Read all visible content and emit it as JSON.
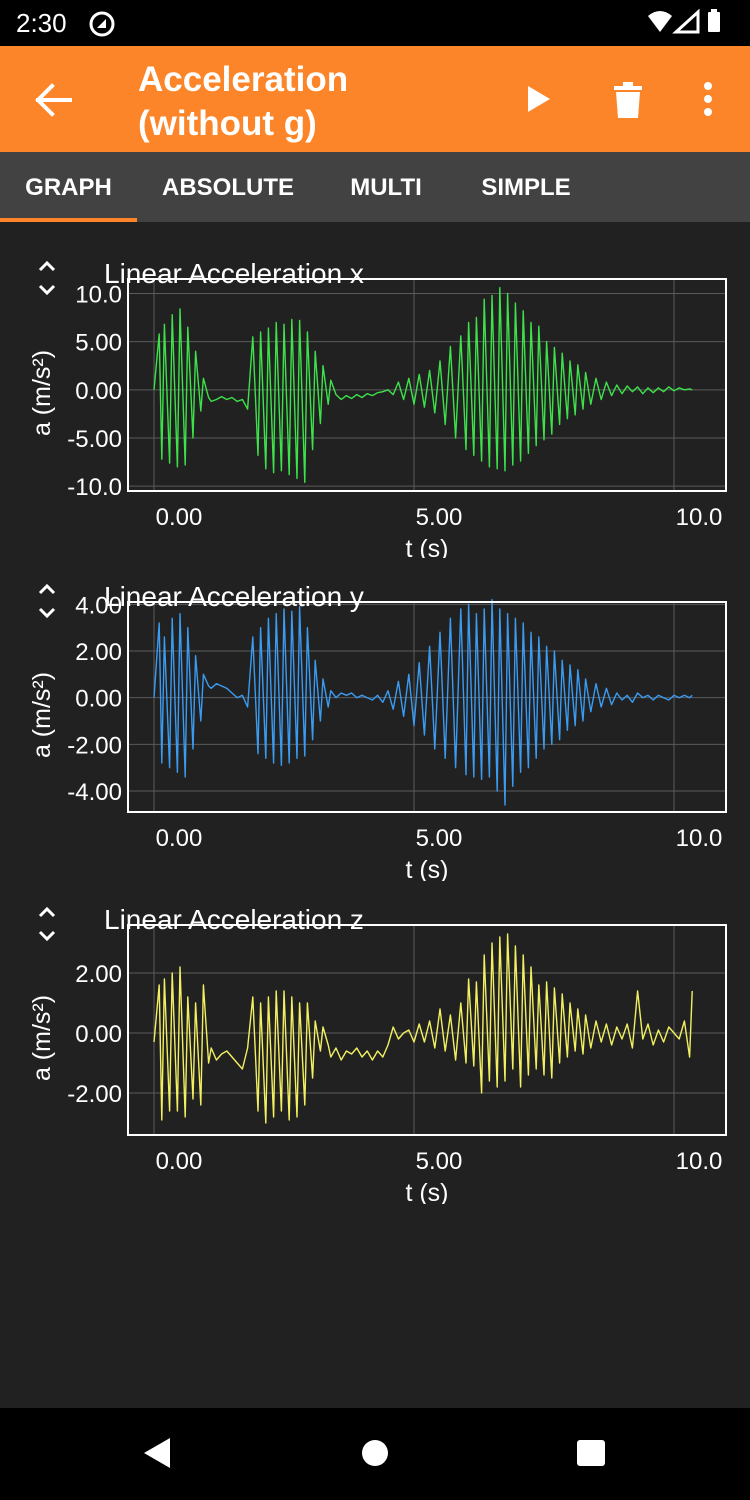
{
  "status_bar": {
    "time": "2:30"
  },
  "toolbar": {
    "title_line1": "Acceleration",
    "title_line2": "(without g)"
  },
  "tabs": [
    {
      "label": "GRAPH",
      "active": true
    },
    {
      "label": "ABSOLUTE",
      "active": false
    },
    {
      "label": "MULTI",
      "active": false
    },
    {
      "label": "SIMPLE",
      "active": false
    }
  ],
  "colors": {
    "accent": "#fb8528",
    "background": "#212121",
    "tabbar": "#424242",
    "x_series": "#3de24a",
    "y_series": "#3a9bf0",
    "z_series": "#f2f060"
  },
  "chart_data": [
    {
      "type": "line",
      "title": "Linear Acceleration x",
      "xlabel": "t (s)",
      "ylabel": "a (m/s²)",
      "xlim": [
        -0.5,
        11.0
      ],
      "ylim": [
        -10.5,
        11.5
      ],
      "x_ticks": [
        "0.00",
        "5.00",
        "10.0"
      ],
      "y_ticks": [
        "10.0",
        "5.00",
        "0.00",
        "-5.00",
        "-10.0"
      ],
      "grid": true,
      "series": [
        {
          "color": "#3de24a",
          "x": [
            0.0,
            0.1,
            0.15,
            0.2,
            0.3,
            0.35,
            0.45,
            0.5,
            0.6,
            0.65,
            0.75,
            0.8,
            0.9,
            0.95,
            1.05,
            1.1,
            1.2,
            1.3,
            1.4,
            1.5,
            1.6,
            1.7,
            1.8,
            1.9,
            2.0,
            2.05,
            2.15,
            2.2,
            2.3,
            2.35,
            2.45,
            2.5,
            2.6,
            2.65,
            2.75,
            2.8,
            2.9,
            2.95,
            3.05,
            3.1,
            3.2,
            3.25,
            3.35,
            3.4,
            3.5,
            3.6,
            3.7,
            3.8,
            3.9,
            4.0,
            4.1,
            4.2,
            4.3,
            4.4,
            4.5,
            4.6,
            4.7,
            4.8,
            4.9,
            5.0,
            5.1,
            5.2,
            5.3,
            5.4,
            5.5,
            5.6,
            5.7,
            5.8,
            5.9,
            6.0,
            6.05,
            6.15,
            6.2,
            6.3,
            6.35,
            6.45,
            6.5,
            6.6,
            6.65,
            6.75,
            6.8,
            6.9,
            6.95,
            7.05,
            7.1,
            7.2,
            7.25,
            7.35,
            7.4,
            7.5,
            7.55,
            7.65,
            7.7,
            7.8,
            7.85,
            7.95,
            8.0,
            8.1,
            8.15,
            8.25,
            8.3,
            8.4,
            8.5,
            8.6,
            8.7,
            8.8,
            8.9,
            9.0,
            9.1,
            9.2,
            9.3,
            9.4,
            9.5,
            9.6,
            9.7,
            9.8,
            9.9,
            10.0,
            10.1,
            10.2,
            10.3,
            10.35
          ],
          "y": [
            0.0,
            5.8,
            -7.2,
            6.8,
            -7.6,
            7.8,
            -8.0,
            8.4,
            -7.8,
            6.5,
            -5.0,
            4.0,
            -2.2,
            1.2,
            -0.8,
            -1.2,
            -1.0,
            -0.7,
            -1.0,
            -0.8,
            -1.2,
            -1.0,
            -2.0,
            5.5,
            -6.8,
            6.0,
            -8.2,
            6.4,
            -8.6,
            7.0,
            -8.4,
            6.8,
            -8.8,
            7.3,
            -9.2,
            7.2,
            -9.6,
            6.0,
            -6.2,
            4.0,
            -3.5,
            2.5,
            -1.5,
            1.0,
            -0.5,
            -1.0,
            -0.6,
            -0.9,
            -0.5,
            -0.8,
            -0.4,
            -0.6,
            -0.3,
            -0.2,
            0.0,
            -0.5,
            0.8,
            -1.0,
            1.2,
            -1.5,
            1.6,
            -1.8,
            2.0,
            -2.4,
            3.0,
            -3.6,
            4.5,
            -5.0,
            5.6,
            -6.2,
            7.0,
            -6.8,
            7.5,
            -7.4,
            9.4,
            -8.0,
            9.8,
            -8.2,
            10.6,
            -8.4,
            10.0,
            -7.8,
            9.0,
            -7.4,
            8.2,
            -6.6,
            7.0,
            -5.8,
            6.6,
            -5.2,
            5.0,
            -4.6,
            4.4,
            -3.6,
            3.8,
            -3.0,
            3.0,
            -2.6,
            2.6,
            -2.0,
            1.8,
            -1.5,
            1.2,
            -1.0,
            0.8,
            -0.6,
            0.5,
            -0.4,
            0.4,
            -0.2,
            0.3,
            -0.4,
            0.2,
            -0.3,
            0.2,
            -0.2,
            0.3,
            -0.1,
            0.2,
            0.0,
            0.1,
            0.0
          ]
        }
      ]
    },
    {
      "type": "line",
      "title": "Linear Acceleration y",
      "xlabel": "t (s)",
      "ylabel": "a (m/s²)",
      "xlim": [
        -0.5,
        11.0
      ],
      "ylim": [
        -4.9,
        4.1
      ],
      "x_ticks": [
        "0.00",
        "5.00",
        "10.0"
      ],
      "y_ticks": [
        "4.00",
        "2.00",
        "0.00",
        "-2.00",
        "-4.00"
      ],
      "grid": true,
      "series": [
        {
          "color": "#3a9bf0",
          "x": [
            0.0,
            0.1,
            0.15,
            0.2,
            0.3,
            0.35,
            0.45,
            0.5,
            0.6,
            0.65,
            0.75,
            0.8,
            0.9,
            0.95,
            1.05,
            1.1,
            1.2,
            1.3,
            1.4,
            1.5,
            1.6,
            1.7,
            1.8,
            1.9,
            2.0,
            2.05,
            2.15,
            2.2,
            2.3,
            2.35,
            2.45,
            2.5,
            2.6,
            2.65,
            2.75,
            2.8,
            2.9,
            2.95,
            3.05,
            3.1,
            3.2,
            3.25,
            3.35,
            3.4,
            3.5,
            3.6,
            3.7,
            3.8,
            3.9,
            4.0,
            4.1,
            4.2,
            4.3,
            4.4,
            4.5,
            4.6,
            4.7,
            4.8,
            4.9,
            5.0,
            5.1,
            5.2,
            5.3,
            5.4,
            5.5,
            5.6,
            5.7,
            5.8,
            5.9,
            6.0,
            6.05,
            6.15,
            6.2,
            6.3,
            6.35,
            6.45,
            6.5,
            6.6,
            6.65,
            6.75,
            6.8,
            6.9,
            6.95,
            7.05,
            7.1,
            7.2,
            7.25,
            7.35,
            7.4,
            7.5,
            7.55,
            7.65,
            7.7,
            7.8,
            7.85,
            7.95,
            8.0,
            8.1,
            8.15,
            8.25,
            8.3,
            8.4,
            8.5,
            8.6,
            8.7,
            8.8,
            8.9,
            9.0,
            9.1,
            9.2,
            9.3,
            9.4,
            9.5,
            9.6,
            9.7,
            9.8,
            9.9,
            10.0,
            10.1,
            10.2,
            10.3,
            10.35
          ],
          "y": [
            0.0,
            3.2,
            -2.8,
            2.6,
            -3.0,
            3.4,
            -3.2,
            3.6,
            -3.4,
            3.0,
            -2.2,
            1.8,
            -1.0,
            1.0,
            0.5,
            0.4,
            0.6,
            0.5,
            0.4,
            0.2,
            0.0,
            0.1,
            -0.4,
            2.6,
            -2.4,
            3.0,
            -2.6,
            3.4,
            -2.8,
            3.6,
            -2.9,
            3.8,
            -2.8,
            3.7,
            -2.6,
            3.9,
            -2.5,
            3.0,
            -1.8,
            1.6,
            -1.0,
            0.8,
            -0.4,
            0.3,
            0.0,
            0.2,
            0.1,
            0.2,
            0.0,
            0.1,
            0.0,
            -0.1,
            0.1,
            -0.2,
            0.3,
            -0.5,
            0.7,
            -0.8,
            1.0,
            -1.2,
            1.5,
            -1.6,
            2.2,
            -2.2,
            2.8,
            -2.6,
            3.4,
            -3.0,
            3.8,
            -3.3,
            4.0,
            -3.4,
            3.6,
            -3.5,
            3.8,
            -3.4,
            4.2,
            -4.0,
            3.8,
            -4.6,
            3.6,
            -3.8,
            3.4,
            -3.2,
            3.2,
            -3.0,
            2.8,
            -2.6,
            2.6,
            -2.2,
            2.2,
            -2.0,
            2.0,
            -1.8,
            1.6,
            -1.4,
            1.4,
            -1.2,
            1.2,
            -1.0,
            0.8,
            -0.6,
            0.6,
            -0.4,
            0.4,
            -0.3,
            0.2,
            -0.1,
            0.1,
            -0.2,
            0.2,
            0.0,
            0.1,
            -0.1,
            0.1,
            0.0,
            -0.1,
            0.1,
            0.0,
            0.1,
            0.0,
            0.1
          ]
        }
      ]
    },
    {
      "type": "line",
      "title": "Linear Acceleration z",
      "xlabel": "t (s)",
      "ylabel": "a (m/s²)",
      "xlim": [
        -0.5,
        11.0
      ],
      "ylim": [
        -3.4,
        3.6
      ],
      "x_ticks": [
        "0.00",
        "5.00",
        "10.0"
      ],
      "y_ticks": [
        "2.00",
        "0.00",
        "-2.00"
      ],
      "grid": true,
      "series": [
        {
          "color": "#f2f060",
          "x": [
            0.0,
            0.1,
            0.15,
            0.2,
            0.3,
            0.35,
            0.45,
            0.5,
            0.6,
            0.65,
            0.75,
            0.8,
            0.9,
            0.95,
            1.05,
            1.1,
            1.2,
            1.3,
            1.4,
            1.5,
            1.6,
            1.7,
            1.8,
            1.9,
            2.0,
            2.05,
            2.15,
            2.2,
            2.3,
            2.35,
            2.45,
            2.5,
            2.6,
            2.65,
            2.75,
            2.8,
            2.9,
            2.95,
            3.05,
            3.1,
            3.2,
            3.25,
            3.35,
            3.4,
            3.5,
            3.6,
            3.7,
            3.8,
            3.9,
            4.0,
            4.1,
            4.2,
            4.3,
            4.4,
            4.5,
            4.6,
            4.7,
            4.8,
            4.9,
            5.0,
            5.1,
            5.2,
            5.3,
            5.4,
            5.5,
            5.6,
            5.7,
            5.8,
            5.9,
            6.0,
            6.05,
            6.15,
            6.2,
            6.3,
            6.35,
            6.45,
            6.5,
            6.6,
            6.65,
            6.75,
            6.8,
            6.9,
            6.95,
            7.05,
            7.1,
            7.2,
            7.25,
            7.35,
            7.4,
            7.5,
            7.55,
            7.65,
            7.7,
            7.8,
            7.85,
            7.95,
            8.0,
            8.1,
            8.15,
            8.25,
            8.3,
            8.4,
            8.5,
            8.6,
            8.7,
            8.8,
            8.9,
            9.0,
            9.1,
            9.2,
            9.3,
            9.4,
            9.5,
            9.6,
            9.7,
            9.8,
            9.9,
            10.0,
            10.1,
            10.2,
            10.3,
            10.35
          ],
          "y": [
            -0.3,
            1.6,
            -2.9,
            1.8,
            -2.6,
            2.0,
            -2.6,
            2.2,
            -2.8,
            1.2,
            -2.2,
            1.0,
            -2.4,
            1.6,
            -1.0,
            -0.5,
            -0.9,
            -0.7,
            -0.6,
            -0.8,
            -1.0,
            -1.2,
            -0.5,
            1.2,
            -2.6,
            1.0,
            -3.0,
            1.2,
            -2.8,
            1.4,
            -2.6,
            1.4,
            -2.9,
            1.2,
            -2.8,
            1.0,
            -2.4,
            1.0,
            -1.5,
            0.4,
            -0.6,
            0.2,
            -0.4,
            -0.8,
            -0.5,
            -0.9,
            -0.6,
            -0.7,
            -0.5,
            -0.8,
            -0.6,
            -0.9,
            -0.6,
            -0.8,
            -0.4,
            0.2,
            -0.2,
            0.0,
            0.1,
            -0.3,
            0.3,
            -0.3,
            0.4,
            -0.5,
            0.8,
            -0.6,
            0.6,
            -0.9,
            1.0,
            -1.0,
            1.8,
            -1.1,
            1.7,
            -2.0,
            2.6,
            -1.6,
            3.0,
            -1.8,
            3.2,
            -1.6,
            3.3,
            -1.2,
            2.9,
            -1.8,
            2.6,
            -1.4,
            2.2,
            -1.2,
            1.6,
            -1.4,
            1.7,
            -1.5,
            1.5,
            -1.0,
            1.3,
            -0.8,
            1.0,
            -0.6,
            0.8,
            -0.7,
            0.6,
            -0.5,
            0.4,
            -0.3,
            0.3,
            -0.4,
            0.2,
            -0.2,
            0.3,
            -0.5,
            1.4,
            -0.2,
            0.3,
            -0.4,
            0.1,
            -0.3,
            0.2,
            0.0,
            -0.2,
            0.4,
            -0.8,
            1.4
          ]
        }
      ]
    }
  ]
}
